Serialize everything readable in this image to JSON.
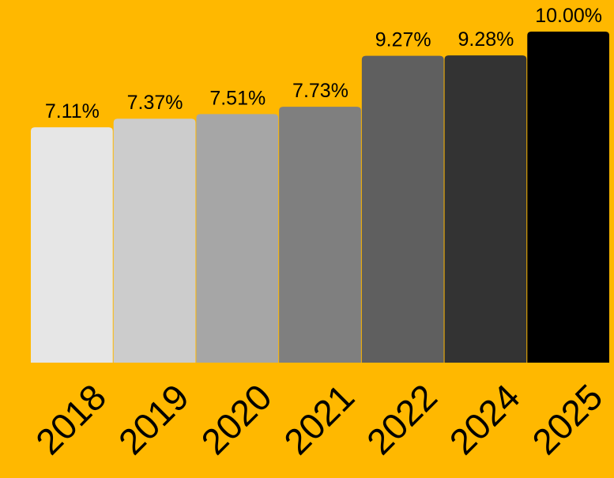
{
  "chart_data": {
    "type": "bar",
    "categories": [
      "2018",
      "2019",
      "2020",
      "2021",
      "2022",
      "2024",
      "2025"
    ],
    "values": [
      7.11,
      7.37,
      7.51,
      7.73,
      9.27,
      9.28,
      10.0
    ],
    "value_labels": [
      "7.11%",
      "7.37%",
      "7.51%",
      "7.73%",
      "9.27%",
      "9.28%",
      "10.00%"
    ],
    "colors": [
      "#e6e6e6",
      "#cccccc",
      "#a6a6a6",
      "#7f7f7f",
      "#5f5f5f",
      "#333333",
      "#000000"
    ],
    "background": "#ffb800"
  }
}
